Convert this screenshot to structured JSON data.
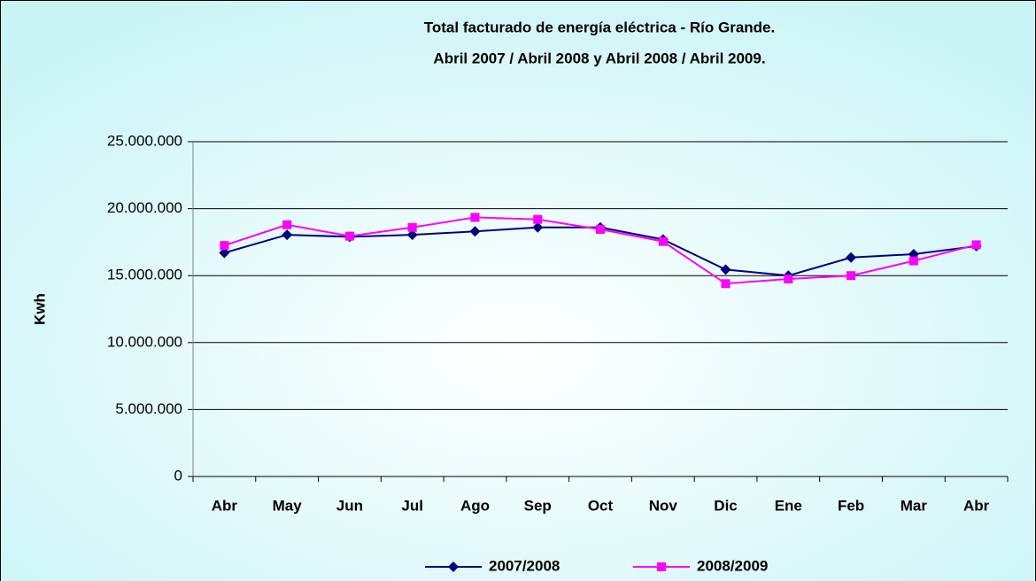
{
  "chart_data": {
    "type": "line",
    "title": "Total facturado de energía eléctrica - Río Grande.",
    "subtitle": "Abril 2007 / Abril 2008 y Abril 2008 / Abril 2009.",
    "y_label": "Kwh",
    "categories": [
      "Abr",
      "May",
      "Jun",
      "Jul",
      "Ago",
      "Sep",
      "Oct",
      "Nov",
      "Dic",
      "Ene",
      "Feb",
      "Mar",
      "Abr"
    ],
    "series": [
      {
        "name": "2007/2008",
        "color": "#000080",
        "marker": "diamond",
        "values": [
          16700000,
          18050000,
          17900000,
          18050000,
          18300000,
          18600000,
          18600000,
          17700000,
          15450000,
          15000000,
          16350000,
          16600000,
          17200000
        ]
      },
      {
        "name": "2008/2009",
        "color": "#ff00ff",
        "marker": "square",
        "values": [
          17250000,
          18800000,
          17950000,
          18600000,
          19350000,
          19200000,
          18450000,
          17550000,
          14400000,
          14750000,
          15000000,
          16100000,
          17300000
        ]
      }
    ],
    "ylim": [
      0,
      25000000
    ],
    "yticks": [
      0,
      {
        "value": 5000000,
        "label": "5.000.000"
      },
      {
        "value": 10000000,
        "label": "10.000.000"
      },
      {
        "value": 15000000,
        "label": "15.000.000"
      },
      {
        "value": 20000000,
        "label": "20.000.000"
      },
      {
        "value": 25000000,
        "label": "25.000.000"
      }
    ],
    "grid": true,
    "legend": "bottom"
  }
}
